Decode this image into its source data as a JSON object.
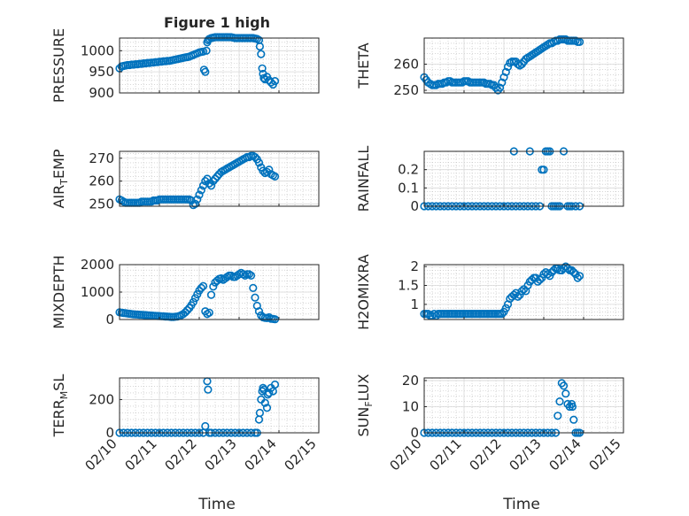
{
  "figure": {
    "title": "Figure 1 high",
    "xlabel": "Time",
    "x_tick_labels": [
      "02/10",
      "02/11",
      "02/12",
      "02/13",
      "02/14",
      "02/15"
    ],
    "marker_color": "#0072BD",
    "marker": "open-circle"
  },
  "chart_data": [
    {
      "type": "scatter",
      "ylabel_main": "PRESSURE",
      "ylabel_sub": "",
      "xlim": [
        0,
        5
      ],
      "ylim": [
        900,
        1030
      ],
      "yticks": [
        900,
        950,
        1000
      ],
      "grid": true,
      "x": [
        0.0,
        0.05,
        0.1,
        0.15,
        0.2,
        0.25,
        0.3,
        0.35,
        0.4,
        0.45,
        0.5,
        0.55,
        0.6,
        0.65,
        0.7,
        0.75,
        0.8,
        0.85,
        0.9,
        0.95,
        1.0,
        1.05,
        1.1,
        1.15,
        1.2,
        1.25,
        1.3,
        1.35,
        1.4,
        1.45,
        1.5,
        1.55,
        1.6,
        1.65,
        1.7,
        1.75,
        1.8,
        1.85,
        1.9,
        1.95,
        2.0,
        2.05,
        2.1,
        2.12,
        2.15,
        2.18,
        2.2,
        2.22,
        2.25,
        2.3,
        2.35,
        2.4,
        2.45,
        2.5,
        2.55,
        2.6,
        2.65,
        2.7,
        2.75,
        2.8,
        2.85,
        2.9,
        2.95,
        3.0,
        3.05,
        3.1,
        3.15,
        3.2,
        3.25,
        3.3,
        3.35,
        3.4,
        3.45,
        3.5,
        3.52,
        3.55,
        3.58,
        3.6,
        3.62,
        3.65,
        3.7,
        3.75,
        3.8,
        3.85,
        3.9
      ],
      "y": [
        958,
        963,
        964,
        965,
        966,
        966,
        967,
        967,
        968,
        968,
        969,
        969,
        970,
        970,
        971,
        971,
        972,
        972,
        973,
        973,
        974,
        974,
        975,
        975,
        976,
        976,
        977,
        978,
        979,
        980,
        981,
        982,
        983,
        984,
        985,
        986,
        988,
        990,
        992,
        994,
        996,
        997,
        998,
        955,
        950,
        1000,
        1020,
        1025,
        1028,
        1030,
        1031,
        1032,
        1032,
        1032,
        1032,
        1032,
        1032,
        1032,
        1032,
        1032,
        1031,
        1030,
        1030,
        1030,
        1030,
        1030,
        1030,
        1030,
        1030,
        1030,
        1030,
        1029,
        1028,
        1025,
        1010,
        992,
        958,
        945,
        935,
        932,
        938,
        930,
        925,
        920,
        928
      ]
    },
    {
      "type": "scatter",
      "ylabel_main": "THETA",
      "ylabel_sub": "",
      "xlim": [
        0,
        5
      ],
      "ylim": [
        249,
        270
      ],
      "yticks": [
        250,
        260
      ],
      "grid": true,
      "x": [
        0.0,
        0.05,
        0.1,
        0.15,
        0.2,
        0.25,
        0.3,
        0.35,
        0.4,
        0.45,
        0.5,
        0.55,
        0.6,
        0.65,
        0.7,
        0.75,
        0.8,
        0.85,
        0.9,
        0.95,
        1.0,
        1.05,
        1.1,
        1.15,
        1.2,
        1.25,
        1.3,
        1.35,
        1.4,
        1.45,
        1.5,
        1.55,
        1.6,
        1.65,
        1.7,
        1.75,
        1.8,
        1.85,
        1.9,
        1.95,
        2.0,
        2.05,
        2.1,
        2.15,
        2.2,
        2.25,
        2.3,
        2.35,
        2.4,
        2.45,
        2.5,
        2.55,
        2.6,
        2.65,
        2.7,
        2.75,
        2.8,
        2.85,
        2.9,
        2.95,
        3.0,
        3.05,
        3.1,
        3.15,
        3.2,
        3.25,
        3.3,
        3.35,
        3.4,
        3.45,
        3.5,
        3.55,
        3.6,
        3.65,
        3.7,
        3.75,
        3.8,
        3.85,
        3.9
      ],
      "y": [
        255,
        254,
        253,
        252.5,
        252,
        252,
        252,
        252.5,
        252.5,
        252.5,
        253,
        253,
        253.5,
        253.5,
        253,
        253,
        253,
        253,
        253,
        253,
        253.5,
        253.5,
        253.5,
        253,
        253,
        253,
        253,
        253,
        253,
        253,
        253,
        252.5,
        252.5,
        252.5,
        252,
        252,
        251,
        250,
        251,
        253,
        255,
        257,
        259,
        260.5,
        261,
        261,
        261,
        260,
        259.5,
        260,
        261,
        262,
        262.5,
        263,
        263.5,
        264,
        264.5,
        265,
        265.5,
        266,
        266.5,
        267,
        267.5,
        268,
        268,
        268.5,
        269,
        269,
        269.5,
        269.5,
        269.5,
        269.5,
        269,
        269,
        269,
        269,
        269,
        268.5,
        268.5
      ]
    },
    {
      "type": "scatter",
      "ylabel_main": "AIR",
      "ylabel_sub": "T",
      "ylabel_after": "EMP",
      "xlim": [
        0,
        5
      ],
      "ylim": [
        249,
        273
      ],
      "yticks": [
        250,
        260,
        270
      ],
      "grid": true,
      "x": [
        0.0,
        0.05,
        0.1,
        0.15,
        0.2,
        0.25,
        0.3,
        0.35,
        0.4,
        0.45,
        0.5,
        0.55,
        0.6,
        0.65,
        0.7,
        0.75,
        0.8,
        0.85,
        0.9,
        0.95,
        1.0,
        1.05,
        1.1,
        1.15,
        1.2,
        1.25,
        1.3,
        1.35,
        1.4,
        1.45,
        1.5,
        1.55,
        1.6,
        1.65,
        1.7,
        1.75,
        1.8,
        1.85,
        1.9,
        1.95,
        2.0,
        2.05,
        2.1,
        2.15,
        2.2,
        2.25,
        2.3,
        2.35,
        2.4,
        2.45,
        2.5,
        2.55,
        2.6,
        2.65,
        2.7,
        2.75,
        2.8,
        2.85,
        2.9,
        2.95,
        3.0,
        3.05,
        3.1,
        3.15,
        3.2,
        3.25,
        3.3,
        3.35,
        3.4,
        3.45,
        3.5,
        3.55,
        3.6,
        3.65,
        3.7,
        3.75,
        3.8,
        3.85,
        3.9
      ],
      "y": [
        252,
        251.5,
        251,
        250.5,
        250.5,
        250.5,
        250.5,
        250.5,
        250.5,
        250.5,
        250.5,
        251,
        251,
        251,
        251,
        251,
        251,
        251.5,
        251.5,
        251.5,
        252,
        252,
        252,
        252,
        252,
        252,
        252,
        252,
        252,
        252,
        252,
        252,
        252,
        252,
        252,
        252,
        251.5,
        249.5,
        250,
        252,
        254,
        256,
        258,
        260,
        261,
        259,
        258,
        260,
        261,
        262,
        263,
        264,
        264.5,
        265,
        265.5,
        266,
        266.5,
        267,
        267.5,
        268,
        268.5,
        269,
        269.5,
        270,
        270.5,
        270.5,
        271,
        271,
        270.5,
        269.5,
        268,
        266,
        264.5,
        263.5,
        264,
        265,
        263,
        262.5,
        262
      ]
    },
    {
      "type": "scatter",
      "ylabel_main": "RAINFALL",
      "ylabel_sub": "",
      "xlim": [
        0,
        5
      ],
      "ylim": [
        0,
        0.3
      ],
      "yticks": [
        0,
        0.1,
        0.2
      ],
      "grid": true,
      "x": [
        0.0,
        0.1,
        0.2,
        0.3,
        0.4,
        0.5,
        0.6,
        0.7,
        0.8,
        0.9,
        1.0,
        1.1,
        1.2,
        1.3,
        1.4,
        1.5,
        1.6,
        1.7,
        1.8,
        1.9,
        2.0,
        2.1,
        2.2,
        2.25,
        2.3,
        2.4,
        2.5,
        2.6,
        2.65,
        2.7,
        2.8,
        2.9,
        2.95,
        3.0,
        3.05,
        3.1,
        3.15,
        3.2,
        3.25,
        3.3,
        3.35,
        3.4,
        3.5,
        3.6,
        3.65,
        3.7,
        3.8,
        3.9
      ],
      "y": [
        0,
        0,
        0,
        0,
        0,
        0,
        0,
        0,
        0,
        0,
        0,
        0,
        0,
        0,
        0,
        0,
        0,
        0,
        0,
        0,
        0,
        0,
        0,
        0.3,
        0,
        0,
        0,
        0,
        0.3,
        0,
        0,
        0,
        0.2,
        0.2,
        0.3,
        0.3,
        0.3,
        0,
        0,
        0,
        0,
        0,
        0.3,
        0,
        0,
        0,
        0,
        0
      ]
    },
    {
      "type": "scatter",
      "ylabel_main": "MIXDEPTH",
      "ylabel_sub": "",
      "xlim": [
        0,
        5
      ],
      "ylim": [
        0,
        2000
      ],
      "yticks": [
        0,
        1000,
        2000
      ],
      "grid": true,
      "x": [
        0.0,
        0.05,
        0.1,
        0.15,
        0.2,
        0.25,
        0.3,
        0.35,
        0.4,
        0.45,
        0.5,
        0.55,
        0.6,
        0.65,
        0.7,
        0.75,
        0.8,
        0.85,
        0.9,
        0.95,
        1.0,
        1.05,
        1.1,
        1.15,
        1.2,
        1.25,
        1.3,
        1.35,
        1.4,
        1.45,
        1.5,
        1.55,
        1.6,
        1.65,
        1.7,
        1.75,
        1.8,
        1.85,
        1.9,
        1.95,
        2.0,
        2.05,
        2.1,
        2.15,
        2.2,
        2.25,
        2.3,
        2.35,
        2.4,
        2.45,
        2.5,
        2.55,
        2.6,
        2.65,
        2.7,
        2.75,
        2.8,
        2.85,
        2.9,
        2.95,
        3.0,
        3.05,
        3.1,
        3.15,
        3.2,
        3.25,
        3.3,
        3.35,
        3.4,
        3.45,
        3.5,
        3.55,
        3.6,
        3.65,
        3.7,
        3.75,
        3.8,
        3.85,
        3.9
      ],
      "y": [
        260,
        250,
        240,
        230,
        220,
        210,
        200,
        190,
        185,
        180,
        175,
        170,
        165,
        160,
        155,
        150,
        145,
        140,
        135,
        130,
        125,
        120,
        115,
        110,
        105,
        100,
        95,
        95,
        100,
        110,
        130,
        160,
        200,
        260,
        340,
        420,
        520,
        640,
        780,
        920,
        1050,
        1150,
        1220,
        300,
        200,
        250,
        900,
        1200,
        1350,
        1420,
        1480,
        1500,
        1450,
        1500,
        1550,
        1600,
        1600,
        1550,
        1550,
        1600,
        1650,
        1700,
        1650,
        1600,
        1650,
        1650,
        1600,
        1150,
        800,
        500,
        300,
        150,
        80,
        60,
        50,
        80,
        30,
        20,
        10
      ]
    },
    {
      "type": "scatter",
      "ylabel_main": "H2OMIXRA",
      "ylabel_sub": "",
      "xlim": [
        0,
        5
      ],
      "ylim": [
        0.6,
        2.05
      ],
      "yticks": [
        1,
        1.5,
        2
      ],
      "grid": true,
      "x": [
        0.0,
        0.05,
        0.1,
        0.15,
        0.2,
        0.25,
        0.3,
        0.35,
        0.4,
        0.45,
        0.5,
        0.55,
        0.6,
        0.65,
        0.7,
        0.75,
        0.8,
        0.85,
        0.9,
        0.95,
        1.0,
        1.05,
        1.1,
        1.15,
        1.2,
        1.25,
        1.3,
        1.35,
        1.4,
        1.45,
        1.5,
        1.55,
        1.6,
        1.65,
        1.7,
        1.75,
        1.8,
        1.85,
        1.9,
        1.95,
        2.0,
        2.05,
        2.1,
        2.15,
        2.2,
        2.25,
        2.3,
        2.35,
        2.4,
        2.45,
        2.5,
        2.55,
        2.6,
        2.65,
        2.7,
        2.75,
        2.8,
        2.85,
        2.9,
        2.95,
        3.0,
        3.05,
        3.1,
        3.15,
        3.2,
        3.25,
        3.3,
        3.35,
        3.4,
        3.45,
        3.5,
        3.55,
        3.6,
        3.65,
        3.7,
        3.75,
        3.8,
        3.85,
        3.9
      ],
      "y": [
        0.75,
        0.75,
        0.75,
        0.7,
        0.7,
        0.75,
        0.7,
        0.75,
        0.75,
        0.75,
        0.75,
        0.75,
        0.75,
        0.75,
        0.75,
        0.75,
        0.75,
        0.75,
        0.75,
        0.75,
        0.75,
        0.75,
        0.75,
        0.75,
        0.75,
        0.75,
        0.75,
        0.75,
        0.75,
        0.75,
        0.75,
        0.75,
        0.75,
        0.75,
        0.75,
        0.75,
        0.75,
        0.75,
        0.75,
        0.75,
        0.8,
        0.9,
        1.0,
        1.15,
        1.2,
        1.25,
        1.3,
        1.2,
        1.25,
        1.35,
        1.4,
        1.35,
        1.5,
        1.6,
        1.65,
        1.7,
        1.7,
        1.6,
        1.65,
        1.7,
        1.8,
        1.85,
        1.8,
        1.75,
        1.85,
        1.9,
        1.95,
        1.95,
        1.9,
        1.9,
        1.95,
        2.0,
        1.95,
        1.9,
        1.9,
        1.85,
        1.8,
        1.7,
        1.75
      ]
    },
    {
      "type": "scatter",
      "ylabel_main": "TERR",
      "ylabel_sub": "M",
      "ylabel_after": "SL",
      "xlim": [
        0,
        5
      ],
      "ylim": [
        0,
        330
      ],
      "yticks": [
        0,
        200
      ],
      "grid": true,
      "x": [
        0.0,
        0.1,
        0.2,
        0.3,
        0.4,
        0.5,
        0.6,
        0.7,
        0.8,
        0.9,
        1.0,
        1.1,
        1.2,
        1.3,
        1.4,
        1.5,
        1.6,
        1.7,
        1.8,
        1.9,
        2.0,
        2.1,
        2.15,
        2.2,
        2.22,
        2.25,
        2.3,
        2.4,
        2.5,
        2.6,
        2.7,
        2.8,
        2.9,
        3.0,
        3.1,
        3.2,
        3.3,
        3.4,
        3.45,
        3.5,
        3.52,
        3.55,
        3.58,
        3.6,
        3.62,
        3.65,
        3.7,
        3.72,
        3.75,
        3.8,
        3.85,
        3.9
      ],
      "y": [
        0,
        0,
        0,
        0,
        0,
        0,
        0,
        0,
        0,
        0,
        0,
        0,
        0,
        0,
        0,
        0,
        0,
        0,
        0,
        0,
        0,
        0,
        40,
        310,
        260,
        0,
        0,
        0,
        0,
        0,
        0,
        0,
        0,
        0,
        0,
        0,
        0,
        0,
        0,
        80,
        120,
        200,
        250,
        270,
        260,
        180,
        150,
        230,
        240,
        270,
        250,
        290
      ]
    },
    {
      "type": "scatter",
      "ylabel_main": "SUN",
      "ylabel_sub": "F",
      "ylabel_after": "LUX",
      "xlim": [
        0,
        5
      ],
      "ylim": [
        0,
        21
      ],
      "yticks": [
        0,
        10,
        20
      ],
      "grid": true,
      "x": [
        0.0,
        0.1,
        0.2,
        0.3,
        0.4,
        0.5,
        0.6,
        0.7,
        0.8,
        0.9,
        1.0,
        1.1,
        1.2,
        1.3,
        1.4,
        1.5,
        1.6,
        1.7,
        1.8,
        1.9,
        2.0,
        2.1,
        2.2,
        2.3,
        2.4,
        2.5,
        2.6,
        2.7,
        2.8,
        2.9,
        3.0,
        3.1,
        3.2,
        3.3,
        3.35,
        3.4,
        3.45,
        3.5,
        3.55,
        3.6,
        3.65,
        3.7,
        3.72,
        3.75,
        3.8,
        3.85,
        3.9
      ],
      "y": [
        0,
        0,
        0,
        0,
        0,
        0,
        0,
        0,
        0,
        0,
        0,
        0,
        0,
        0,
        0,
        0,
        0,
        0,
        0,
        0,
        0,
        0,
        0,
        0,
        0,
        0,
        0,
        0,
        0,
        0,
        0,
        0,
        0,
        0,
        6.5,
        12,
        19,
        18,
        15,
        11,
        10,
        11,
        10,
        5,
        0,
        0,
        0
      ]
    }
  ]
}
